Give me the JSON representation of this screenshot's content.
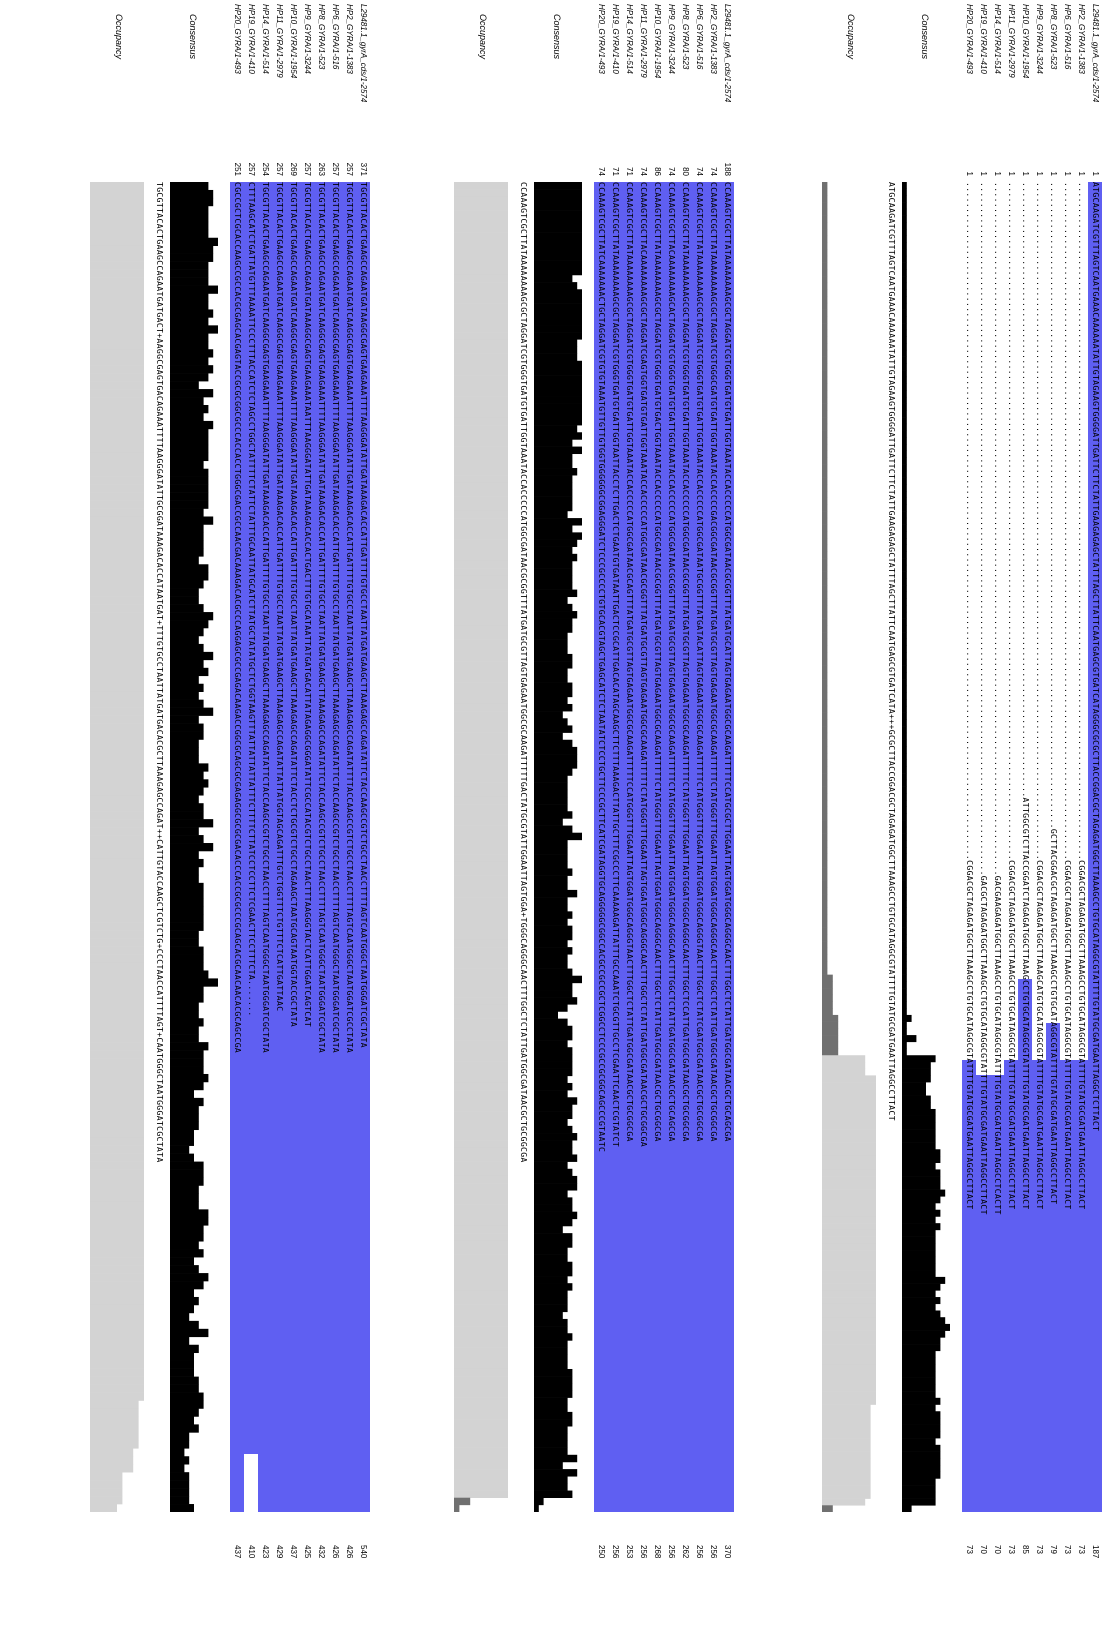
{
  "colors": {
    "identity_high": "#5f5ff2",
    "identity_mid": "#8c8cf0",
    "identity_low": "#c4c4f6",
    "consensus_bar": "#000000",
    "occupancy_bar": "#d3d3d3",
    "occupancy_dark": "#707070"
  },
  "tracks": {
    "consensus_label": "Consensus",
    "occupancy_label": "Occupancy"
  },
  "blocks": [
    {
      "rows": [
        {
          "name": "L29481.1_gyrA_cds/1-2574",
          "start": "1",
          "seq": "ATGCAAGATCGTTTAGTCAATGAAACAAAAAATATTGTAGAAGTGGGGATTGATTCTTCTATTGAAGAGAGCTATTTAGCTTATTCAATGAGCGTGATCATAGGGCGCGCTTACCGGACGCTAGAGATGGCTTAAAGCCTGTGCATAGGCGTATTTTGTATGCGATGAATTAGGCTCTTACT",
          "end": "187"
        },
        {
          "name": "HP2_GYRA/1-1383",
          "start": "1",
          "seq": "..................................................................................................................................CGGACGCTAGAGATGGCTTAAAGCCTGTGCATAGGCGTATTTTGTATGCGATGAATTAGGCCTTACT",
          "end": "73"
        },
        {
          "name": "HP6_GYRA/1-516",
          "start": "1",
          "seq": "..................................................................................................................................CGGACGCTAGAGATGGCTTAAAGCCTGTGCATAGGCGTATTTTGTATGCGATGAATTAGGCCTTACT",
          "end": "73"
        },
        {
          "name": "HP8_GYRA/1-523",
          "start": "1",
          "seq": "............................................................................................................................GCTTACGGACGCTAGAGATGGCTTAAAGCCTGTGCATAGGCGTATTTTGTATGCGATGAATTAGGCCTTACT",
          "end": "79"
        },
        {
          "name": "HP9_GYRA/1-3244",
          "start": "1",
          "seq": "..................................................................................................................................CGGACGCTAGAGATGGCTTAAAGCATGTGCATAGGCGTATTTTGTATGCGATGAATTAGGCCTTACT",
          "end": "73"
        },
        {
          "name": "HP10_GYRA/1-1954",
          "start": "1",
          "seq": "......................................................................................................................ATTGGCGTCTTACCGGATCTAGAGATGGCTTAAAGCCTGTGCATAGGCGTATTTTGTATGCGATGAATTAGGCCTTACT",
          "end": "85"
        },
        {
          "name": "HP11_GYRA/1-2979",
          "start": "1",
          "seq": "..................................................................................................................................CGGACGCTAGAGATGGCTTAAAGCCTGTGCATAGGCGTATTTTGTATGCGATGAATTAGGCCTTACT",
          "end": "73"
        },
        {
          "name": "HP14_GYRA/1-514",
          "start": "1",
          "seq": ".....................................................................................................................................GACGAAGAGATGGCTTAAAGCCTGTGCATAGGCGTATTTTGTATGCGATGAATTAGGCCTCACTT",
          "end": "70"
        },
        {
          "name": "HP19_GYRA/1-410",
          "start": "1",
          "seq": ".....................................................................................................................................GACGCTAGAGATGGCTTAAAGCCTGTGCATAGGCGTATTTTGTATGCGATGAATTAGGCCTTACT",
          "end": "70"
        },
        {
          "name": "HP20_GYRA/1-493",
          "start": "1",
          "seq": "..................................................................................................................................CGGACGCTAGAGATGGCTTAAAGCCTGTGCATAGGCGTATTTTGTATGCGATGAATTAGGCCTTACT",
          "end": "73"
        }
      ],
      "consensus": "ATGCAAGATCGTTTAGTCAATGAAACAAAAAATATTGTAGAAGTGGGGATTGATTCTTCTATTGAAGAGAGCTATTTAGCTTATTCAATGAGCGTGATCATA+++GCGCTTACCGGACGCTAGAGATGGCTTAAAGCCTGTGCATAGGCGTATTTTGTATGCGATGAATTAGGCCTTACT"
    },
    {
      "rows": [
        {
          "name": "L29481.1_gyrA_cds/1-2574",
          "start": "188",
          "seq": "CCAAAGTCGCTTATAAAAAAAAGCGCTAGGATCGTGGGTGATGTGATTGGTAAATACCACCCCCATGGCGATAACGCGGTTTATGATGCATTAGTGAGAATGGCGCAAGATTTTTCCATGCGCTTGGAATTAGTGGATGGGCAGGGCAACTTTGGCTCTATTGATGGCGATAACGCTGCAGCGA",
          "end": "370"
        },
        {
          "name": "HP2_GYRA/1-1383",
          "start": "74",
          "seq": "CCAAAGTCGCTTATAAAAAAAAGCGCTAGGATCGTGGGCGATGTGATTGGTAAATACCACCCCGACGGCGATAACGCGGTTTATGATGCGTTAGTGAGAATGGCGCAAGATTTTTCTATGGGTTTGGAATTAGTGGATGGGCAGGGCAACTTTGGCTCTATTGATGGCGATAACGCTGCGGCGA",
          "end": "256"
        },
        {
          "name": "HP6_GYRA/1-516",
          "start": "74",
          "seq": "CCAAAGTCGCTTATAAAAAAAAGCGCTAGGATCGTGGGTGATGTGATTGGTAAATACCACCCCCATGGCGATAATGCGGTTTATGATACATTAGTGAGAATGGCGCAAGATTTTTCTATGGGTTTGGAATTAGTGGATGGGCAGGGTAACTTTGGCTCTATCGATGGCGATAACGCTGCGGCGA",
          "end": "256"
        },
        {
          "name": "HP8_GYRA/1-523",
          "start": "80",
          "seq": "CCAAAGTCGCTTATAAAAAAAAGCGCTAGGATCGTGGGTGATGTGATTGGTAAATACCACCCCCATGGCGATAACGCGGTTTATGATGCGTTAGTGAGAATGGCGCAAGATTTTTCTATGGGTTTGGAATTAGTGGATGGGCAGGGCAACTTTGGCTCCATTGATGGCGATAACGCTGCGGCGA",
          "end": "262"
        },
        {
          "name": "HP9_GYRA/1-3244",
          "start": "74",
          "seq": "CCAAAGTCGCTTACAAAAAAAAGCACTAGGATCGTGGGTGATGTGATTGGTAAATACCACCCCCATGGCGATAACGCGGTTTATGATGCGTTAGTGAGAATGGCGCAAGATTTTTCTATGGGTTTGGAATTAGTGGATGGGCAGGGCAACTTTGGCTCTATTGATGGCGATAACGCTGCAGCGA",
          "end": "256"
        },
        {
          "name": "HP10_GYRA/1-1954",
          "start": "86",
          "seq": "CCAAAGTCGCTTATAAAAAAAAGCGCTAGGATCGTGGGTGATGTGACTGGTAAATACCACCCCCATGGCGATAACGCGGTTTATGATGCGTTAGTGAGAATGGCGCAAGATTTTTCTATGGGTTTGGAATTAGTGGATGGGCAGGGCAACTTTGGCTCTATTGATGGCGATAACGCTGCGGCGA",
          "end": "268"
        },
        {
          "name": "HP11_GYRA/1-2979",
          "start": "74",
          "seq": "CCAAAGTCGCTTACAAAAAAAAGCGCTAGGATCGAGTGGTGATGTGATTGGTAAATACCACCCCCATGGCGATAACGCGGTTTATGATGCGTTAGTGAGAATGGCGCAAGATTTTTCTATGGGTTTGGAATTAGTGGATGGGCAGGGCAACTTTGGCTCTATTGATGGCGATAACGCTGCGGCGA",
          "end": "256"
        },
        {
          "name": "HP14_GYRA/1-514",
          "start": "71",
          "seq": "CCAAAGTCGCTTATAAAAAAAAGCGCTAGGATCGTGGGTGATGTGATTGGTAAATACCACCCCCATGGCGATAACGCAGTTTATGATGCGTTAGTGAGAATGGCGCAAGATTTTTCCATGGGTTTGGAATTAGTGGATGGGCAGGGTAACTTTGGCTCTATTGATGGCGATAACGCTGCGGCGA",
          "end": "253"
        },
        {
          "name": "HP19_GYRA/1-410",
          "start": "71",
          "seq": "CCAAAGTCGCTTATAAAAAAAAGCGCTAGGATCGTGGGTGATGTGATTGGTAATTACCTCTTGACTCTGAATGTGATAATTGACTCCGCATTGACACATAGCAAGCTTCTTTAAAGACTTATTGCTTTCGCCCTTCAAAAAGATTATTTGCCAAATCTGCGTTGCCTCGAATTCAACTCGTATCT",
          "end": "256"
        },
        {
          "name": "HP20_GYRA/1-493",
          "start": "74",
          "seq": "CCAAAGTCGCTTATCAAAAAAACTGCTAGGATCGTGTGTAAATGTTGTTGTGGTGGGGGGCGGAGGGATCTCCCGCCCCTGTGCACGTAGCTGAGCATCTCTAATATCTCCTGCTTCCCGCTTCATCGATAGGTGCAGGGGGCGGCCACGCCGCCGCTCGGCCTCCCGCCGCGGCAGCCCGTAATC",
          "end": "250"
        }
      ],
      "consensus": "CCAAAGTCGCTTATAAAAAAAAGCGCTAGGATCGTGGGTGATGTGATTGGTAAATACCACCCCCATGGCGATAACGCGGTTTATGATGCGTTAGTGAGAATGGCGCAAGATTTTTGACTATGCGTATTGGAATTAGTGGA+TGGGCAGGGCAACTTTGGCTCTATTGATGGCGATAACGCTGCGGCGA"
    },
    {
      "rows": [
        {
          "name": "L29481.1_gyrA_cds/1-2574",
          "start": "371",
          "seq": "TGCGTTACACTGAAGCCAGAATGATAAGGCGAGTGAAGAAATTTTAAGGGATATTGATAAAGACACCATTGATTTTGTGCCTAATTATGATGAAGCTTAAAGAGCCAGATATTCTACCAAGCCGTCTGCCTAACCTTTTAGTCAATGGGCTAATGGGATCGCTATA",
          "end": "540"
        },
        {
          "name": "HP2_GYRA/1-1383",
          "start": "257",
          "seq": "TGCGTTACACTGAAGCCAGAATGATCAAGGCGAGTGAAGAAATTTTAAGGGATATTGATAAAGACACCATTGATTTTGTGCCTAATTATGATGAAGCTTAAAGAGCCAGATATTTTACCAAGCCGTCTGCCTAACCTTTTAGTCAATGGGCTAATGGATCGCCTATA",
          "end": "426"
        },
        {
          "name": "HP6_GYRA/1-516",
          "start": "257",
          "seq": "TGCGTTACACTGAAGCCAGAATGATCAAGGCGAGTGAAGAAATTTTAAGGGATATTGATAAAGACACCATTGATTTTGTGCCTAATTATGATGAAGCTTAAAGAGCCAGATATTCTACCAAGCCGTCTGCCTAACCTTTTAGTCAATGGGCTAATGGGATCGCTATA",
          "end": "426"
        },
        {
          "name": "HP8_GYRA/1-523",
          "start": "263",
          "seq": "TGCGTTACACTGAAGCCAGAATGATCAAGGCGAGTGAAGAAATTTTAAGGGATATTGATAAAGACACCATTGATTTTGTGCCTAATTATGATGAAGCTTAAAGAGCCAGATATTCTACCAAGCCGTCTGCCTAACCTTTTAGTCAATGGGCTAATGGGATCGCTATA",
          "end": "432"
        },
        {
          "name": "HP9_GYRA/1-3244",
          "start": "257",
          "seq": "TGCGTTACACTGAAGCCAGAATGATAAAGGCGAGTGAAGAAATAATTTAAGGGATATTGATAAAGACACCACTGACTTTGTGCATAATTATGATGACATTATAGAGGCGGGATATTCGCCATACGTCTGCCTAACTTTAAGGGTACTCATTGGATCAGTCAT",
          "end": "425"
        },
        {
          "name": "HP10_GYRA/1-1954",
          "start": "269",
          "seq": "TGCGTTACACTGAAGCCAGAATGATCAAGGCGAGTGAAGAAATTTTAAGGGATATTGATAAAGACACCATTGATTTTGTGCCTAATTATGATGAAGCTTAAAGAGCCAGATATTCTACCTCTGCGTCTGCCTAGAAGCTAATGCAGTAATGGTACCGCTATA",
          "end": "437"
        },
        {
          "name": "HP11_GYRA/1-2979",
          "start": "257",
          "seq": "TGCGTTACACTGAAGCCAGAATGATCAAGGCGAGTGAAGAAATTTTAAGGGATATTGATAAAGACACCATTGATTTTGTGCCTAATTATGATGAAGCTTAAAGAGCCAGATATTATTATGGTAGCAGATTTGTCTGGTTTCTGTTTCTCATTGATTAAC",
          "end": "429"
        },
        {
          "name": "HP14_GYRA/1-514",
          "start": "254",
          "seq": "TGCGTTACACTGAAGCCAGAATGATCAAGGCGAGTGAAGAAATTTTAAGGGATATTGATAAAGACACCATTGATTTTGTGCCTAATTATGATGAAGCTTAAAGAGCCAGATATTCTACCAAGCCGTCTGCCTAACCTTTTAGTCAATGGGCTAATGGGATCGCTATA",
          "end": "423"
        },
        {
          "name": "HP19_GYRA/1-410",
          "start": "257",
          "seq": "CTTTAAGCATCTGATTATGTTTAAAATTCCCTTTACCATCTCTAGCCTGGCTATTTTCTATTCTATTTGCAATTATGCATCTTATGCTATATGCTCTGGTAAGTTTATTATTATTATTTCTTTTCTTATCCTCCTTCTCGAACTTCCTTTCTA.......",
          "end": "410"
        },
        {
          "name": "HP20_GYRA/1-493",
          "start": "251",
          "seq": "CGCCGCTCGCACCAAGCCGCCACGCGAGCACGAGTACCGCGCGGCGCCCACCACCTGGGCGACCGCCAACGACAAAGACACGCCCAGGAGCGCCGAGACAAGACCGGCGCAGCGCGAGAGGCGCGCGACACCCACCGCGCCCGCAGCACGCAACAACACGCAGCCGA",
          "end": "437"
        }
      ],
      "consensus": "TGCGTTACACTGAAGCCAGAATGATGACT+AAGGCGAGTGACAGAAATTTTAAGGGATATTGCGGATAAAGACACCATAATGAT+TTTGTGCCTAATTATGATGACACGCTTAAAGAGCCAGAT++CATTGTACCAAGCTCGTCTG+CCCTAACCATTTTAGT+CAATGGGCTAATGGGATCGCTATA"
    }
  ]
}
